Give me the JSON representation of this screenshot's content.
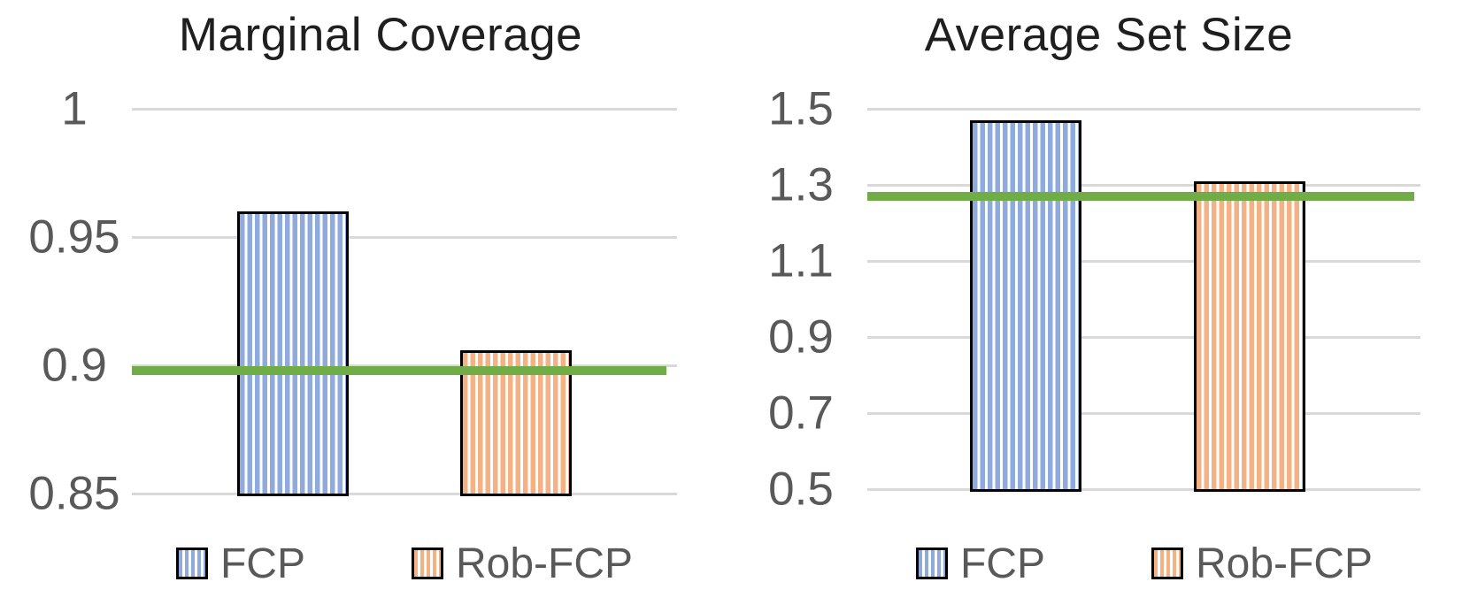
{
  "figure": {
    "background": "#ffffff",
    "legend_position": "bottom"
  },
  "colors": {
    "series": [
      "#8FAADC",
      "#F4B183"
    ],
    "reference_line": "#70AD47",
    "gridline": "#D9D9D9",
    "tick_label": "#595959",
    "legend_label": "#595959",
    "title": "#1F1F1F",
    "bar_outline": "#000000"
  },
  "chart_data": [
    {
      "type": "bar",
      "title": "Marginal Coverage",
      "categories": [
        "FCP",
        "Rob-FCP"
      ],
      "values": [
        0.96,
        0.906
      ],
      "reference_line": 0.898,
      "ylim": [
        0.85,
        1.0
      ],
      "yticks": [
        1,
        0.95,
        0.9,
        0.85
      ],
      "ytick_labels": [
        "1",
        "0.95",
        "0.9",
        "0.85"
      ],
      "legend": [
        "FCP",
        "Rob-FCP"
      ],
      "grid": "horizontal",
      "bar_style": "vertical-stripes"
    },
    {
      "type": "bar",
      "title": "Average Set Size",
      "categories": [
        "FCP",
        "Rob-FCP"
      ],
      "values": [
        1.47,
        1.31
      ],
      "reference_line": 1.27,
      "ylim": [
        0.5,
        1.5
      ],
      "yticks": [
        1.5,
        1.3,
        1.1,
        0.9,
        0.7,
        0.5
      ],
      "ytick_labels": [
        "1.5",
        "1.3",
        "1.1",
        "0.9",
        "0.7",
        "0.5"
      ],
      "legend": [
        "FCP",
        "Rob-FCP"
      ],
      "grid": "horizontal",
      "bar_style": "vertical-stripes"
    }
  ]
}
